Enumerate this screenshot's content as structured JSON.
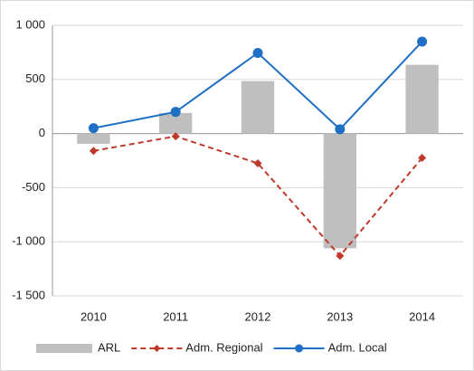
{
  "chart_data": {
    "type": "bar_line",
    "categories": [
      "2010",
      "2011",
      "2012",
      "2013",
      "2014"
    ],
    "series": [
      {
        "name": "ARL",
        "type": "bar",
        "color": "#bfbfbf",
        "values": [
          -95,
          190,
          485,
          -1060,
          635
        ]
      },
      {
        "name": "Adm. Regional",
        "type": "line",
        "style": "dashed",
        "marker": "diamond",
        "color": "#c0392b",
        "values": [
          -160,
          -25,
          -275,
          -1130,
          -225
        ]
      },
      {
        "name": "Adm. Local",
        "type": "line",
        "style": "solid",
        "marker": "circle",
        "color": "#1f6fc5",
        "values": [
          50,
          200,
          745,
          40,
          850
        ]
      }
    ],
    "ylim": [
      -1500,
      1000
    ],
    "yticks": [
      {
        "value": -1500,
        "label": "-1 500"
      },
      {
        "value": -1000,
        "label": "-1 000"
      },
      -500,
      0,
      500,
      {
        "value": 1000,
        "label": "1 000"
      }
    ],
    "grid": true,
    "legend": "bottom"
  }
}
